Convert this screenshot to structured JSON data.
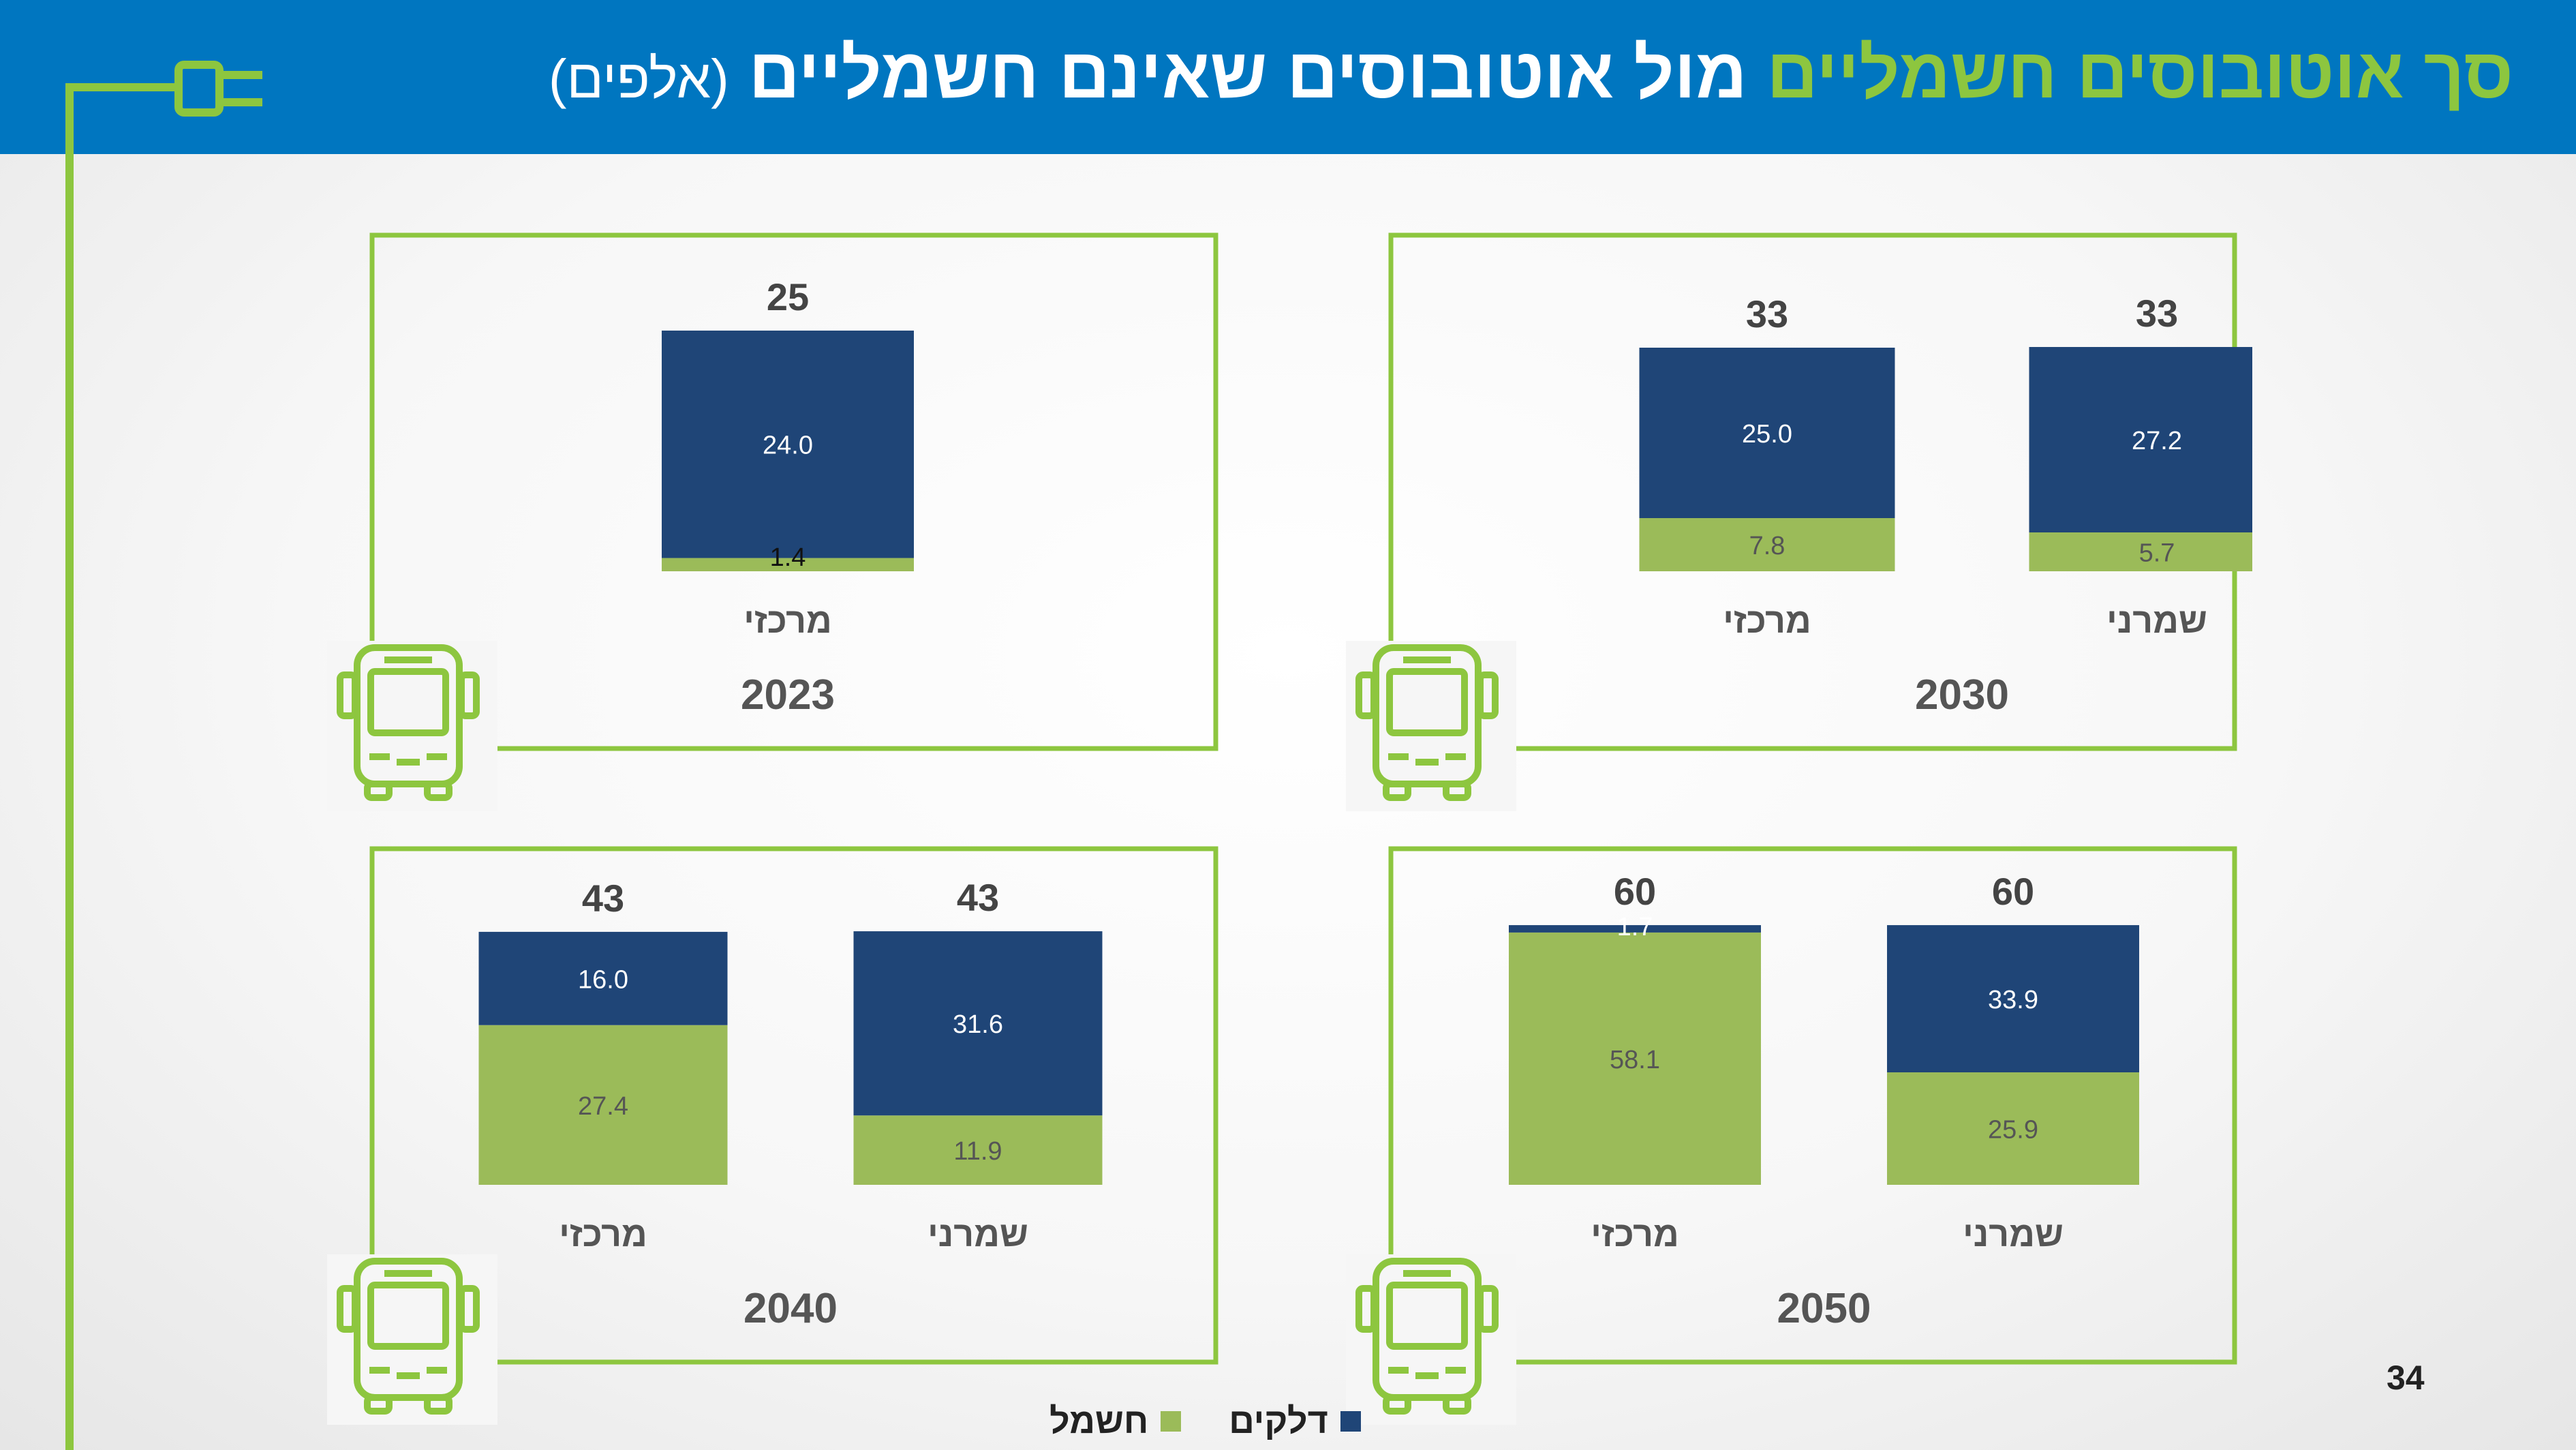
{
  "title": {
    "green_part": "סך אוטובוסים חשמליים",
    "white_part": "מול אוטובוסים שאינם חשמליים",
    "unit": "(אלפים)"
  },
  "legend": {
    "fuel": "דלקים",
    "electric": "חשמל"
  },
  "colors": {
    "fuel": "#1f4577",
    "electric": "#9bbb59",
    "frame": "#8dc63f",
    "header": "#0076c0"
  },
  "page_number": "34",
  "chart_data": [
    {
      "type": "bar",
      "stacked": true,
      "year": "2023",
      "categories": [
        "מרכזי"
      ],
      "series": [
        {
          "name": "חשמל",
          "values": [
            1.4
          ]
        },
        {
          "name": "דלקים",
          "values": [
            24.0
          ]
        }
      ],
      "totals": [
        "25"
      ]
    },
    {
      "type": "bar",
      "stacked": true,
      "year": "2030",
      "categories": [
        "מרכזי",
        "שמרני"
      ],
      "series": [
        {
          "name": "חשמל",
          "values": [
            7.8,
            5.7
          ]
        },
        {
          "name": "דלקים",
          "values": [
            25.0,
            27.2
          ]
        }
      ],
      "totals": [
        "33",
        "33"
      ]
    },
    {
      "type": "bar",
      "stacked": true,
      "year": "2040",
      "categories": [
        "מרכזי",
        "שמרני"
      ],
      "series": [
        {
          "name": "חשמל",
          "values": [
            27.4,
            11.9
          ]
        },
        {
          "name": "דלקים",
          "values": [
            16.0,
            31.6
          ]
        }
      ],
      "totals": [
        "43",
        "43"
      ]
    },
    {
      "type": "bar",
      "stacked": true,
      "year": "2050",
      "categories": [
        "מרכזי",
        "שמרני"
      ],
      "series": [
        {
          "name": "חשמל",
          "values": [
            58.1,
            25.9
          ]
        },
        {
          "name": "דלקים",
          "values": [
            1.7,
            33.9
          ]
        }
      ],
      "totals": [
        "60",
        "60"
      ]
    }
  ]
}
